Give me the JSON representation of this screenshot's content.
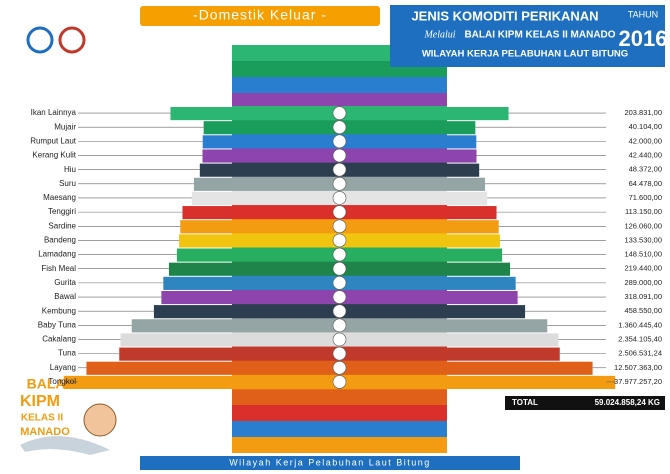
{
  "header": {
    "banner": "-Domestik Keluar -",
    "title": "JENIS KOMODITI PERIKANAN",
    "via": "Melalui",
    "org": "BALAI KIPM KELAS II MANADO",
    "area": "WILAYAH KERJA PELABUHAN LAUT BITUNG",
    "year_label": "TAHUN",
    "year": "2016"
  },
  "logo": {
    "line1": "BALAI",
    "line2": "KIPM",
    "line3": "KELAS II",
    "line4": "MANADO"
  },
  "footer": "Wilayah Kerja Pelabuhan Laut Bitung",
  "chart_data": {
    "type": "butterfly-bar",
    "log_scale": true,
    "xlim": [
      10000,
      100000000
    ],
    "categories": [
      "Ikan Lainnya",
      "Mujair",
      "Rumput Laut",
      "Kerang Kulit",
      "Hiu",
      "Suru",
      "Maesang",
      "Tenggiri",
      "Sardine",
      "Bandeng",
      "Lamadang",
      "Fish Meal",
      "Gurita",
      "Bawal",
      "Kembung",
      "Baby Tuna",
      "Cakalang",
      "Tuna",
      "Layang",
      "Tongkol"
    ],
    "values": [
      203831,
      40104,
      42000,
      42440,
      48372,
      64478,
      71600,
      113150,
      126060,
      133530,
      148510,
      219440,
      289000,
      318091,
      458550,
      1360445.4,
      2354105.4,
      2506531.24,
      12507363,
      37977257.2
    ],
    "value_labels": [
      "203.831,00",
      "40.104,00",
      "42.000,00",
      "42.440,00",
      "48.372,00",
      "64.478,00",
      "71.600,00",
      "113.150,00",
      "126.060,00",
      "133.530,00",
      "148.510,00",
      "219.440,00",
      "289.000,00",
      "318.091,00",
      "458.550,00",
      "1.360.445,40",
      "2.354.105,40",
      "2.506.531,24",
      "12.507.363,00",
      "37.977.257,20"
    ],
    "colors": [
      "#2bb673",
      "#1a9d5a",
      "#2a7ed0",
      "#8e44ad",
      "#2c3e50",
      "#95a5a6",
      "#e4e4e4",
      "#d9302c",
      "#f39c12",
      "#f1c40f",
      "#27ae60",
      "#1e8449",
      "#2e86c1",
      "#8e44ad",
      "#2c3e50",
      "#95a5a6",
      "#dcdcdc",
      "#c0392b",
      "#e0601a",
      "#f39c12"
    ],
    "total_label": "TOTAL",
    "total": 59024858.24,
    "total_value_label": "59.024.858,24 KG"
  }
}
